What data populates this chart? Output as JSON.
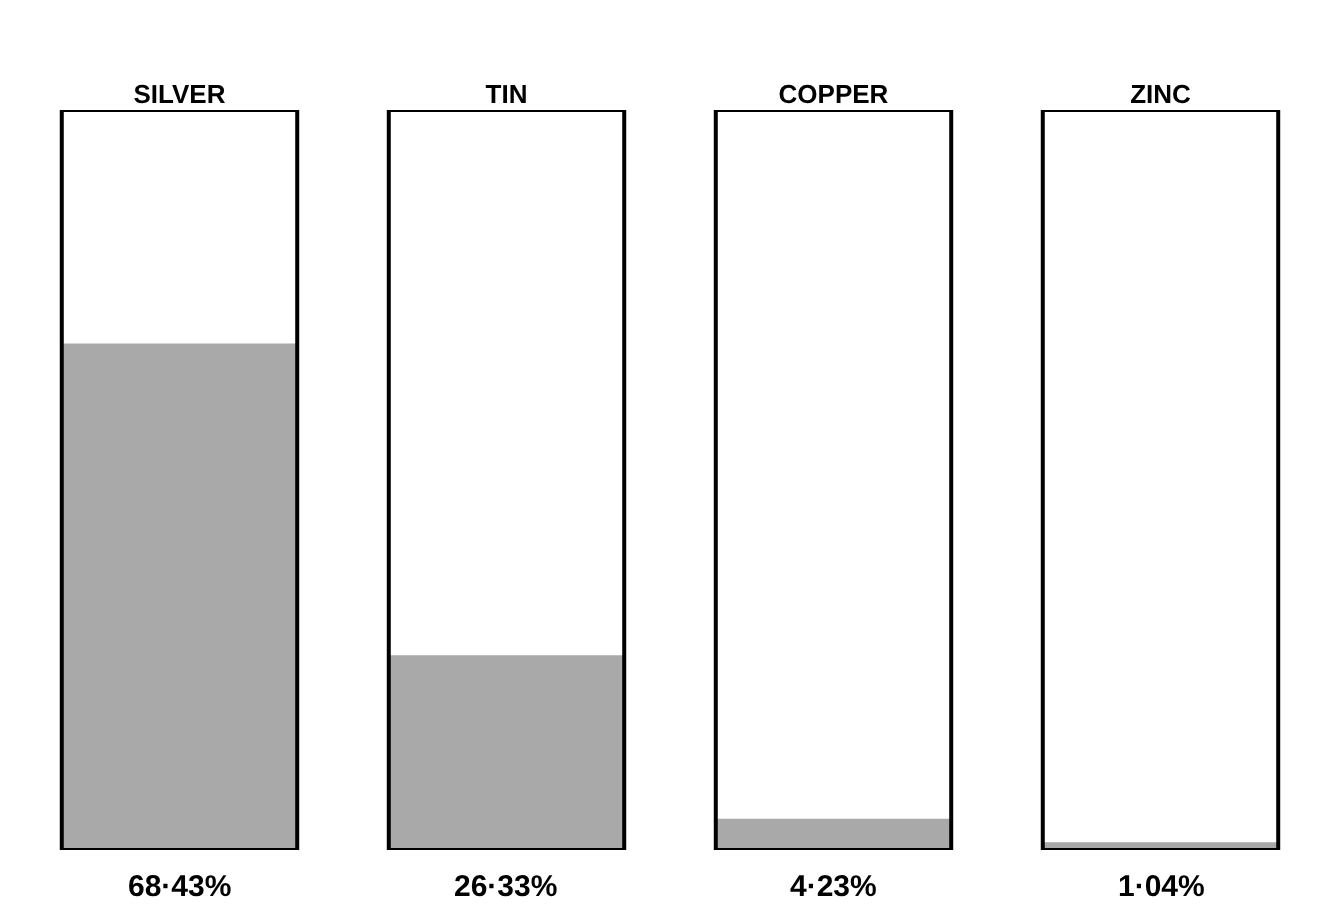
{
  "chart_data": {
    "type": "bar",
    "categories": [
      "SILVER",
      "TIN",
      "COPPER",
      "ZINC"
    ],
    "values": [
      68.43,
      26.33,
      4.23,
      1.04
    ],
    "value_labels": [
      "68·43%",
      "26·33%",
      "4·23%",
      "1·04%"
    ],
    "color": "#a9a9a9",
    "ylim": [
      0,
      100
    ],
    "tick_labels": "x",
    "grid": false,
    "legend": false
  }
}
